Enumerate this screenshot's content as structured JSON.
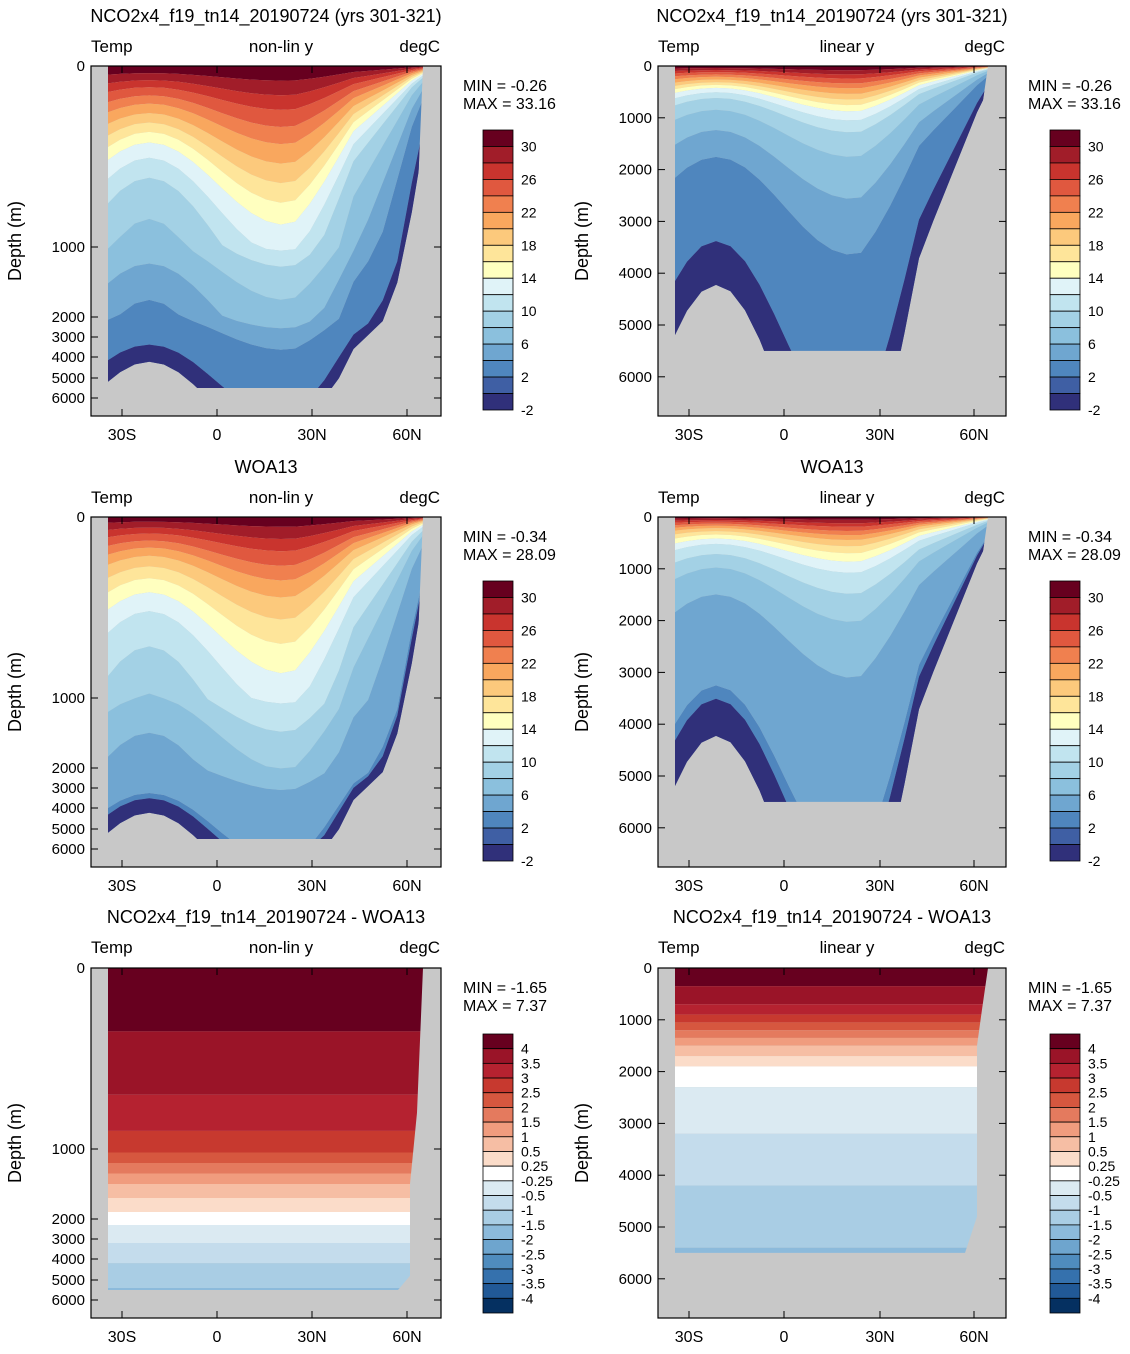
{
  "chart_data": [
    {
      "type": "heatmap",
      "title": "NCO2x4_f19_tn14_20190724 (yrs 301-321)",
      "left_label": "Temp",
      "center_label": "non-lin y",
      "right_label": "degC",
      "ylabel": "Depth (m)",
      "y_scale": "non-linear",
      "x_ticks": [
        "30S",
        "0",
        "30N",
        "60N"
      ],
      "y_ticks": [
        "0",
        "1000",
        "2000",
        "3000",
        "4000",
        "5000",
        "6000"
      ],
      "min_label": "MIN = -0.26",
      "max_label": "MAX = 33.16",
      "colorbar_labels": [
        "30",
        "26",
        "22",
        "18",
        "14",
        "10",
        "6",
        "2",
        "-2"
      ],
      "color_levels": 17
    },
    {
      "type": "heatmap",
      "title": "NCO2x4_f19_tn14_20190724 (yrs 301-321)",
      "left_label": "Temp",
      "center_label": "linear y",
      "right_label": "degC",
      "ylabel": "Depth (m)",
      "y_scale": "linear",
      "x_ticks": [
        "30S",
        "0",
        "30N",
        "60N"
      ],
      "y_ticks": [
        "0",
        "1000",
        "2000",
        "3000",
        "4000",
        "5000",
        "6000"
      ],
      "min_label": "MIN = -0.26",
      "max_label": "MAX = 33.16",
      "colorbar_labels": [
        "30",
        "26",
        "22",
        "18",
        "14",
        "10",
        "6",
        "2",
        "-2"
      ],
      "color_levels": 17
    },
    {
      "type": "heatmap",
      "title": "WOA13",
      "left_label": "Temp",
      "center_label": "non-lin y",
      "right_label": "degC",
      "ylabel": "Depth (m)",
      "y_scale": "non-linear",
      "x_ticks": [
        "30S",
        "0",
        "30N",
        "60N"
      ],
      "y_ticks": [
        "0",
        "1000",
        "2000",
        "3000",
        "4000",
        "5000",
        "6000"
      ],
      "min_label": "MIN = -0.34",
      "max_label": "MAX = 28.09",
      "colorbar_labels": [
        "30",
        "26",
        "22",
        "18",
        "14",
        "10",
        "6",
        "2",
        "-2"
      ],
      "color_levels": 17
    },
    {
      "type": "heatmap",
      "title": "WOA13",
      "left_label": "Temp",
      "center_label": "linear y",
      "right_label": "degC",
      "ylabel": "Depth (m)",
      "y_scale": "linear",
      "x_ticks": [
        "30S",
        "0",
        "30N",
        "60N"
      ],
      "y_ticks": [
        "0",
        "1000",
        "2000",
        "3000",
        "4000",
        "5000",
        "6000"
      ],
      "min_label": "MIN = -0.34",
      "max_label": "MAX = 28.09",
      "colorbar_labels": [
        "30",
        "26",
        "22",
        "18",
        "14",
        "10",
        "6",
        "2",
        "-2"
      ],
      "color_levels": 17
    },
    {
      "type": "heatmap",
      "title": "NCO2x4_f19_tn14_20190724 - WOA13",
      "left_label": "Temp",
      "center_label": "non-lin y",
      "right_label": "degC",
      "ylabel": "Depth (m)",
      "y_scale": "non-linear",
      "x_ticks": [
        "30S",
        "0",
        "30N",
        "60N"
      ],
      "y_ticks": [
        "0",
        "1000",
        "2000",
        "3000",
        "4000",
        "5000",
        "6000"
      ],
      "min_label": "MIN = -1.65",
      "max_label": "MAX = 7.37",
      "colorbar_labels": [
        "4",
        "3.5",
        "3",
        "2.5",
        "2",
        "1.5",
        "1",
        "0.5",
        "0.25",
        "-0.25",
        "-0.5",
        "-1",
        "-1.5",
        "-2",
        "-2.5",
        "-3",
        "-3.5",
        "-4"
      ],
      "color_levels": 19
    },
    {
      "type": "heatmap",
      "title": "NCO2x4_f19_tn14_20190724 - WOA13",
      "left_label": "Temp",
      "center_label": "linear y",
      "right_label": "degC",
      "ylabel": "Depth (m)",
      "y_scale": "linear",
      "x_ticks": [
        "30S",
        "0",
        "30N",
        "60N"
      ],
      "y_ticks": [
        "0",
        "1000",
        "2000",
        "3000",
        "4000",
        "5000",
        "6000"
      ],
      "min_label": "MIN = -1.65",
      "max_label": "MAX = 7.37",
      "colorbar_labels": [
        "4",
        "3.5",
        "3",
        "2.5",
        "2",
        "1.5",
        "1",
        "0.5",
        "0.25",
        "-0.25",
        "-0.5",
        "-1",
        "-1.5",
        "-2",
        "-2.5",
        "-3",
        "-3.5",
        "-4"
      ],
      "color_levels": 19
    }
  ],
  "colors": {
    "land": "#c8c8c8",
    "temp_palette": [
      "#67001f",
      "#a11d29",
      "#c9342e",
      "#e0583f",
      "#f0804f",
      "#f9a75e",
      "#fcc97c",
      "#fee59a",
      "#ffffbf",
      "#e0f3f8",
      "#c1e4ef",
      "#a3d1e5",
      "#8bc0dd",
      "#6fa6d0",
      "#4f86be",
      "#3f5fa4",
      "#30307a"
    ],
    "diff_palette": [
      "#67001f",
      "#9a1428",
      "#b52230",
      "#c7392f",
      "#d6573f",
      "#e47a5e",
      "#f09c7e",
      "#f6bea4",
      "#fbdcc9",
      "#ffffff",
      "#dbeaf2",
      "#c4dcec",
      "#a9cde4",
      "#8cbadb",
      "#6ea5ce",
      "#4f8cbe",
      "#3571ad",
      "#215997",
      "#053061"
    ]
  }
}
